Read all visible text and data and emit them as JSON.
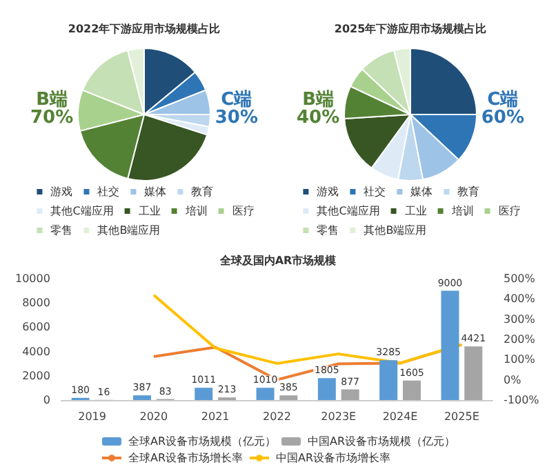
{
  "chart_data": [
    {
      "type": "pie",
      "title": "2022年下游应用市场规模占比",
      "categories": [
        "游戏",
        "社交",
        "媒体",
        "教育",
        "其他C端应用",
        "工业",
        "培训",
        "医疗",
        "零售",
        "其他B端应用"
      ],
      "values": [
        14,
        5,
        6,
        3,
        2,
        24,
        17,
        10,
        15,
        4
      ],
      "colors": [
        "#1f4e79",
        "#2e75b6",
        "#9dc3e6",
        "#bdd7ee",
        "#deebf7",
        "#375623",
        "#548235",
        "#a9d18e",
        "#c5e0b4",
        "#e2f0d9"
      ],
      "annotations": [
        "B端\n70%",
        "C端\n30%"
      ],
      "legend": "bottom"
    },
    {
      "type": "pie",
      "title": "2025年下游应用市场规模占比",
      "categories": [
        "游戏",
        "社交",
        "媒体",
        "教育",
        "其他C端应用",
        "工业",
        "培训",
        "医疗",
        "零售",
        "其他B端应用"
      ],
      "values": [
        25,
        12,
        10,
        6,
        7,
        14,
        8,
        5,
        9,
        4
      ],
      "colors": [
        "#1f4e79",
        "#2e75b6",
        "#9dc3e6",
        "#bdd7ee",
        "#deebf7",
        "#375623",
        "#548235",
        "#a9d18e",
        "#c5e0b4",
        "#e2f0d9"
      ],
      "annotations": [
        "B端\n40%",
        "C端\n60%"
      ],
      "legend": "bottom"
    },
    {
      "type": "bar",
      "title": "全球及国内AR市场规模",
      "categories": [
        "2019",
        "2020",
        "2021",
        "2022",
        "2023E",
        "2024E",
        "2025E"
      ],
      "series": [
        {
          "name": "全球AR设备市场规模（亿元）",
          "color": "#5b9bd5",
          "values": [
            180,
            387,
            1011,
            1010,
            1805,
            3285,
            9000
          ],
          "value_labels": [
            "180",
            "387",
            "1011",
            "1010",
            "1805",
            "3285",
            "9000"
          ]
        },
        {
          "name": "中国AR设备市场规模（亿元）",
          "color": "#a5a5a5",
          "values": [
            16,
            83,
            213,
            385,
            877,
            1605,
            4421
          ],
          "value_labels": [
            "16",
            "83",
            "213",
            "385",
            "877",
            "1605",
            "4421"
          ]
        },
        {
          "name": "全球AR设备市场增长率",
          "type": "line",
          "axis": "y2",
          "color": "#ed7d31",
          "values": [
            null,
            115,
            161,
            0,
            79,
            82,
            174
          ]
        },
        {
          "name": "中国AR设备市场增长率",
          "type": "line",
          "axis": "y2",
          "color": "#ffc000",
          "values": [
            null,
            419,
            157,
            81,
            128,
            83,
            175
          ]
        }
      ],
      "ylim": [
        0,
        10000
      ],
      "yticks": [
        0,
        2000,
        4000,
        6000,
        8000,
        10000
      ],
      "y2lim": [
        -100,
        500
      ],
      "y2ticks": [
        {
          "value": -100,
          "label": "-100%"
        },
        {
          "value": 0,
          "label": "0%"
        },
        {
          "value": 100,
          "label": "100%"
        },
        {
          "value": 200,
          "label": "200%"
        },
        {
          "value": 300,
          "label": "300%"
        },
        {
          "value": 400,
          "label": "400%"
        },
        {
          "value": 500,
          "label": "500%"
        }
      ],
      "legend": "bottom",
      "marker": "none"
    }
  ]
}
